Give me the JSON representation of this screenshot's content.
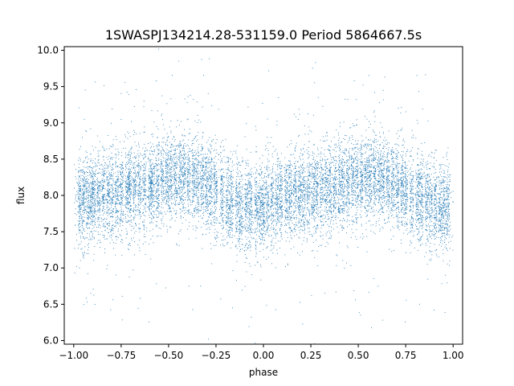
{
  "chart_data": {
    "type": "scatter",
    "title": "1SWASPJ134214.28-531159.0 Period 5864667.5s",
    "xlabel": "phase",
    "ylabel": "flux",
    "xlim": [
      -1.05,
      1.05
    ],
    "ylim": [
      5.95,
      10.05
    ],
    "x_ticks": [
      -1.0,
      -0.75,
      -0.5,
      -0.25,
      0.0,
      0.25,
      0.5,
      0.75,
      1.0
    ],
    "x_tick_labels": [
      "−1.00",
      "−0.75",
      "−0.50",
      "−0.25",
      "0.00",
      "0.25",
      "0.50",
      "0.75",
      "1.00"
    ],
    "y_ticks": [
      6.0,
      6.5,
      7.0,
      7.5,
      8.0,
      8.5,
      9.0,
      9.5,
      10.0
    ],
    "y_tick_labels": [
      "6.0",
      "6.5",
      "7.0",
      "7.5",
      "8.0",
      "8.5",
      "9.0",
      "9.5",
      "10.0"
    ],
    "grid": false,
    "legend": "none",
    "marker_color": "#1f77b4",
    "series": [
      {
        "points": [
          [
            -0.97,
            8.1
          ],
          [
            -0.95,
            7.8
          ],
          [
            -0.93,
            8.4
          ],
          [
            -0.91,
            8.0
          ],
          [
            -0.89,
            8.2
          ],
          [
            -0.85,
            8.3
          ],
          [
            -0.82,
            8.0
          ],
          [
            -0.8,
            8.5
          ],
          [
            -0.78,
            8.1
          ],
          [
            -0.76,
            7.9
          ],
          [
            -0.73,
            8.2
          ],
          [
            -0.7,
            8.6
          ],
          [
            -0.66,
            8.3
          ],
          [
            -0.62,
            8.0
          ],
          [
            -0.58,
            8.4
          ],
          [
            -0.55,
            8.7
          ],
          [
            -0.52,
            8.2
          ],
          [
            -0.48,
            8.0
          ],
          [
            -0.45,
            8.3
          ],
          [
            -0.42,
            7.9
          ],
          [
            -0.38,
            8.1
          ],
          [
            -0.34,
            7.8
          ],
          [
            -0.3,
            8.0
          ],
          [
            -0.27,
            7.7
          ],
          [
            -0.22,
            8.0
          ],
          [
            -0.18,
            7.6
          ],
          [
            -0.14,
            7.9
          ],
          [
            -0.1,
            7.8
          ],
          [
            -0.06,
            7.7
          ],
          [
            -0.03,
            8.0
          ],
          [
            0.02,
            8.1
          ],
          [
            0.06,
            7.9
          ],
          [
            0.1,
            8.2
          ],
          [
            0.14,
            8.0
          ],
          [
            0.18,
            8.3
          ],
          [
            0.22,
            8.1
          ],
          [
            0.26,
            8.4
          ],
          [
            0.3,
            8.0
          ],
          [
            0.34,
            8.2
          ],
          [
            0.38,
            8.1
          ],
          [
            0.42,
            8.3
          ],
          [
            0.46,
            8.5
          ],
          [
            0.5,
            8.2
          ],
          [
            0.54,
            8.0
          ],
          [
            0.58,
            8.4
          ],
          [
            0.62,
            8.1
          ],
          [
            0.66,
            7.9
          ],
          [
            0.7,
            8.0
          ],
          [
            0.74,
            7.8
          ],
          [
            0.78,
            8.1
          ],
          [
            0.82,
            7.9
          ],
          [
            0.86,
            8.0
          ],
          [
            0.9,
            7.7
          ],
          [
            0.94,
            8.1
          ],
          [
            0.97,
            7.9
          ]
        ],
        "column_centers": [
          -0.97,
          -0.95,
          -0.93,
          -0.91,
          -0.895,
          -0.87,
          -0.845,
          -0.82,
          -0.8,
          -0.775,
          -0.75,
          -0.72,
          -0.705,
          -0.68,
          -0.655,
          -0.63,
          -0.6,
          -0.585,
          -0.56,
          -0.535,
          -0.51,
          -0.49,
          -0.465,
          -0.44,
          -0.42,
          -0.395,
          -0.37,
          -0.35,
          -0.325,
          -0.3,
          -0.28,
          -0.255,
          -0.22,
          -0.19,
          -0.17,
          -0.14,
          -0.12,
          -0.09,
          -0.07,
          -0.04,
          -0.02,
          0.0,
          0.02,
          0.045,
          0.07,
          0.09,
          0.12,
          0.14,
          0.165,
          0.19,
          0.21,
          0.235,
          0.26,
          0.28,
          0.305,
          0.33,
          0.35,
          0.375,
          0.4,
          0.42,
          0.445,
          0.47,
          0.49,
          0.515,
          0.54,
          0.56,
          0.585,
          0.61,
          0.63,
          0.655,
          0.68,
          0.705,
          0.73,
          0.75,
          0.78,
          0.81,
          0.83,
          0.86,
          0.88,
          0.905,
          0.93,
          0.95,
          0.97
        ]
      }
    ]
  }
}
